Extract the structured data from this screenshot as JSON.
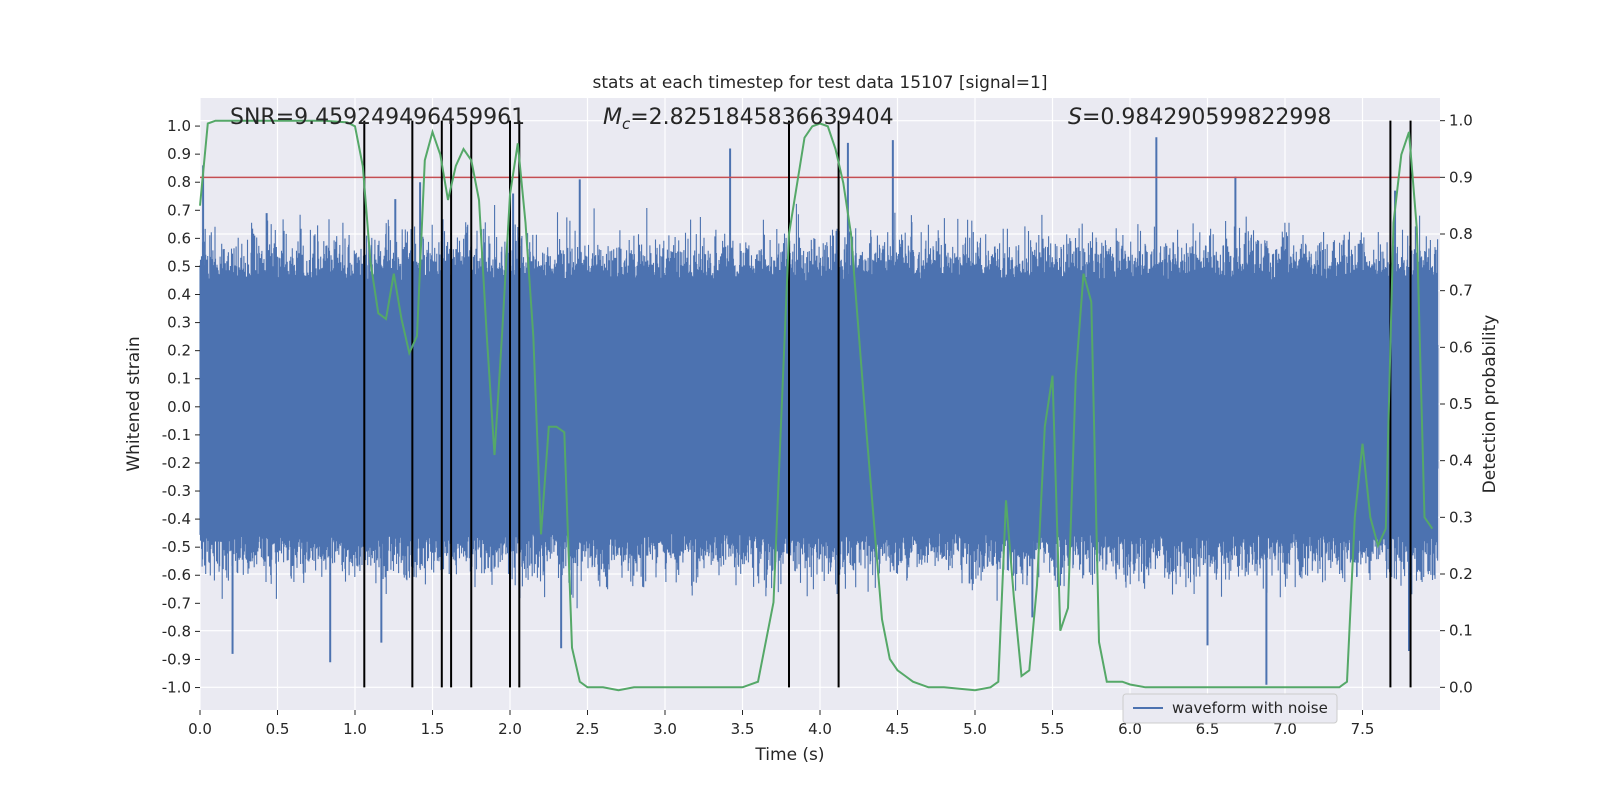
{
  "chart_data": {
    "type": "line",
    "title": "stats at each timestep for test data 15107 [signal=1]",
    "xlabel": "Time (s)",
    "ylabel_left": "Whitened strain",
    "ylabel_right": "Detection probability",
    "xlim": [
      0.0,
      8.0
    ],
    "ylim_left": [
      -1.08,
      1.1
    ],
    "ylim_right": [
      -0.04,
      1.04
    ],
    "xticks": [
      "0.0",
      "0.5",
      "1.0",
      "1.5",
      "2.0",
      "2.5",
      "3.0",
      "3.5",
      "4.0",
      "4.5",
      "5.0",
      "5.5",
      "6.0",
      "6.5",
      "7.0",
      "7.5"
    ],
    "yticks_left": [
      "1.0",
      "0.9",
      "0.8",
      "0.7",
      "0.6",
      "0.5",
      "0.4",
      "0.3",
      "0.2",
      "0.1",
      "0.0",
      "-0.1",
      "-0.2",
      "-0.3",
      "-0.4",
      "-0.5",
      "-0.6",
      "-0.7",
      "-0.8",
      "-0.9",
      "-1.0"
    ],
    "yticks_right": [
      "1.0",
      "0.9",
      "0.8",
      "0.7",
      "0.6",
      "0.5",
      "0.4",
      "0.3",
      "0.2",
      "0.1",
      "0.0"
    ],
    "grid": true,
    "legend_position": "bottom-right",
    "annotations": {
      "snr": "SNR=9.459249496459961",
      "mc_symbol": "M",
      "mc_sub": "c",
      "mc_value": "=2.8251845836639404",
      "s_symbol": "S",
      "s_value": "=0.984290599822998"
    },
    "series": [
      {
        "name": "waveform with noise",
        "axis": "left",
        "color": "#4c72b0",
        "note": "dense noisy strain; typical amplitude envelope",
        "envelope_upper": 0.45,
        "envelope_lower": -0.45,
        "peak_spikes": [
          [
            0.02,
            0.86
          ],
          [
            0.43,
            0.69
          ],
          [
            1.26,
            0.74
          ],
          [
            1.42,
            0.8
          ],
          [
            2.02,
            0.76
          ],
          [
            2.45,
            0.81
          ],
          [
            3.42,
            0.92
          ],
          [
            4.18,
            0.94
          ],
          [
            4.47,
            0.95
          ],
          [
            6.17,
            0.96
          ],
          [
            6.68,
            0.82
          ],
          [
            7.71,
            0.77
          ]
        ],
        "trough_spikes": [
          [
            0.21,
            -0.88
          ],
          [
            0.84,
            -0.91
          ],
          [
            1.17,
            -0.84
          ],
          [
            2.33,
            -0.86
          ],
          [
            5.37,
            -0.75
          ],
          [
            6.88,
            -0.99
          ],
          [
            6.5,
            -0.85
          ],
          [
            7.8,
            -0.87
          ]
        ]
      },
      {
        "name": "detection probability",
        "axis": "right",
        "color": "#55a868",
        "x": [
          0.0,
          0.05,
          0.1,
          0.2,
          0.4,
          0.6,
          0.8,
          0.95,
          1.0,
          1.05,
          1.1,
          1.15,
          1.2,
          1.25,
          1.3,
          1.35,
          1.4,
          1.45,
          1.5,
          1.55,
          1.6,
          1.65,
          1.7,
          1.75,
          1.8,
          1.85,
          1.9,
          1.95,
          2.0,
          2.05,
          2.1,
          2.15,
          2.2,
          2.25,
          2.3,
          2.35,
          2.4,
          2.45,
          2.5,
          2.6,
          2.7,
          2.8,
          3.0,
          3.2,
          3.4,
          3.5,
          3.6,
          3.7,
          3.8,
          3.9,
          3.95,
          4.0,
          4.05,
          4.1,
          4.15,
          4.2,
          4.3,
          4.4,
          4.45,
          4.5,
          4.55,
          4.6,
          4.7,
          4.8,
          5.0,
          5.1,
          5.15,
          5.2,
          5.25,
          5.3,
          5.35,
          5.4,
          5.45,
          5.5,
          5.55,
          5.6,
          5.65,
          5.7,
          5.75,
          5.8,
          5.85,
          5.9,
          5.95,
          6.0,
          6.1,
          6.2,
          6.4,
          6.6,
          6.8,
          7.0,
          7.2,
          7.35,
          7.4,
          7.45,
          7.5,
          7.55,
          7.6,
          7.65,
          7.7,
          7.75,
          7.8,
          7.85,
          7.9,
          7.95
        ],
        "values": [
          0.85,
          0.995,
          1.0,
          1.0,
          1.0,
          1.0,
          1.0,
          0.997,
          0.99,
          0.92,
          0.75,
          0.66,
          0.65,
          0.73,
          0.65,
          0.59,
          0.62,
          0.93,
          0.98,
          0.94,
          0.86,
          0.92,
          0.95,
          0.93,
          0.86,
          0.62,
          0.41,
          0.63,
          0.87,
          0.96,
          0.82,
          0.62,
          0.27,
          0.46,
          0.46,
          0.45,
          0.07,
          0.01,
          0.0,
          0.0,
          -0.005,
          0.0,
          0.0,
          0.0,
          0.0,
          0.0,
          0.01,
          0.15,
          0.8,
          0.97,
          0.99,
          0.995,
          0.99,
          0.95,
          0.89,
          0.8,
          0.45,
          0.12,
          0.05,
          0.03,
          0.02,
          0.01,
          0.0,
          0.0,
          -0.005,
          0.0,
          0.01,
          0.33,
          0.16,
          0.02,
          0.03,
          0.18,
          0.46,
          0.55,
          0.1,
          0.14,
          0.55,
          0.73,
          0.68,
          0.08,
          0.01,
          0.01,
          0.01,
          0.005,
          0.0,
          0.0,
          0.0,
          0.0,
          0.0,
          0.0,
          0.0,
          0.0,
          0.01,
          0.3,
          0.43,
          0.3,
          0.25,
          0.28,
          0.82,
          0.94,
          0.98,
          0.81,
          0.3,
          0.28
        ]
      }
    ],
    "threshold_line": {
      "axis": "right",
      "value": 0.9,
      "color": "#c44e52"
    },
    "vertical_lines": [
      1.06,
      1.37,
      1.56,
      1.62,
      1.75,
      2.0,
      2.06,
      3.8,
      4.12,
      7.68,
      7.81
    ]
  }
}
